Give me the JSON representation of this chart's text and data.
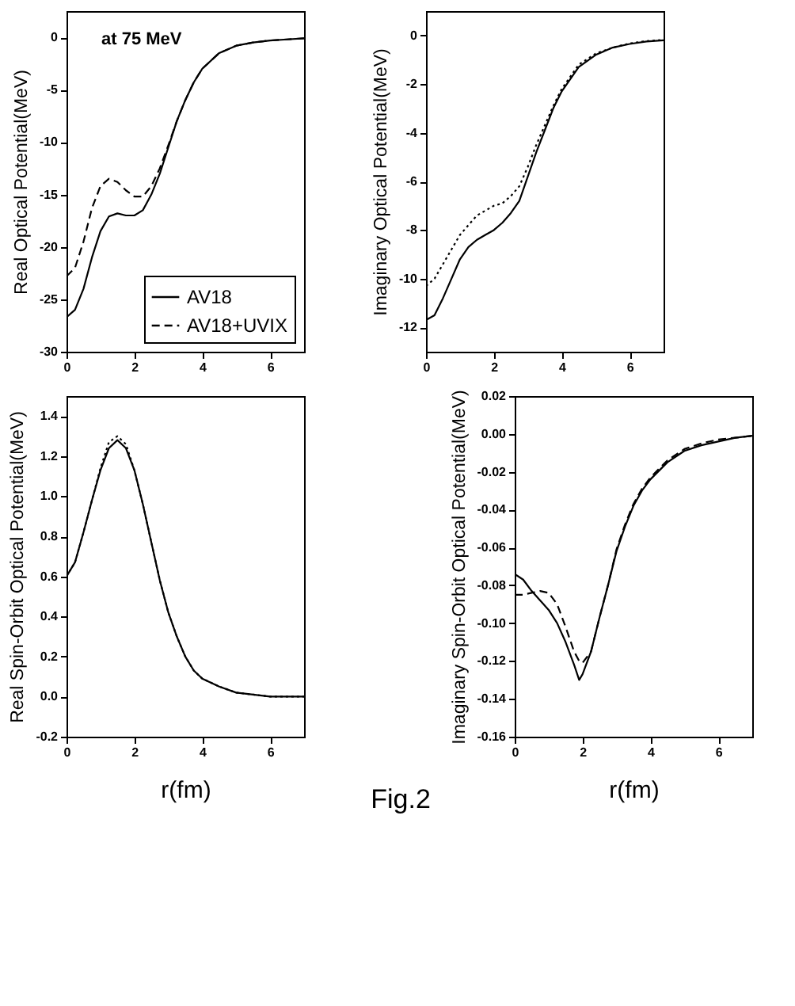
{
  "chart_data": [
    {
      "type": "line",
      "ylabel": "Real Optical Potential(MeV)",
      "annotations": [
        "at 75 MeV"
      ],
      "xlim": [
        0,
        7
      ],
      "xticks": [
        0,
        2,
        4,
        6
      ],
      "ylim": [
        -30,
        2.5
      ],
      "yticks": [
        -30,
        -25,
        -20,
        -15,
        -10,
        -5,
        0
      ],
      "legend": "bottom right",
      "grid": false,
      "x": [
        0,
        0.25,
        0.5,
        0.75,
        1.0,
        1.25,
        1.5,
        1.75,
        2.0,
        2.25,
        2.5,
        2.75,
        3.0,
        3.25,
        3.5,
        3.75,
        4.0,
        4.5,
        5.0,
        5.5,
        6.0,
        6.5,
        7.0
      ],
      "series": [
        {
          "name": "AV18",
          "color": "#000000",
          "line_style": "solid",
          "values": [
            -26.7,
            -26,
            -24,
            -21,
            -18.5,
            -17.1,
            -16.8,
            -17.0,
            -17.0,
            -16.5,
            -15,
            -13,
            -10.5,
            -8,
            -6,
            -4.3,
            -3,
            -1.5,
            -0.8,
            -0.5,
            -0.3,
            -0.2,
            -0.1
          ]
        },
        {
          "name": "AV18+UVIX",
          "color": "#000000",
          "line_style": "dashed",
          "values": [
            -22.8,
            -22,
            -19.5,
            -16.3,
            -14.2,
            -13.5,
            -13.8,
            -14.6,
            -15.2,
            -15.2,
            -14.2,
            -12.5,
            -10.3,
            -8,
            -6,
            -4.3,
            -3,
            -1.5,
            -0.8,
            -0.5,
            -0.3,
            -0.2,
            -0.1
          ]
        }
      ]
    },
    {
      "type": "line",
      "ylabel": "Imaginary Optical Potential(MeV)",
      "xlim": [
        0,
        7
      ],
      "xticks": [
        0,
        2,
        4,
        6
      ],
      "ylim": [
        -13,
        1
      ],
      "yticks": [
        -12,
        -10,
        -8,
        -6,
        -4,
        -2,
        0
      ],
      "grid": false,
      "x": [
        0,
        0.25,
        0.5,
        0.75,
        1.0,
        1.25,
        1.5,
        1.75,
        2.0,
        2.25,
        2.5,
        2.75,
        3.0,
        3.25,
        3.5,
        3.75,
        4.0,
        4.5,
        5.0,
        5.5,
        6.0,
        6.5,
        7.0
      ],
      "series": [
        {
          "color": "#000000",
          "line_style": "solid",
          "values": [
            -11.7,
            -11.5,
            -10.8,
            -10,
            -9.2,
            -8.7,
            -8.4,
            -8.2,
            -8.0,
            -7.7,
            -7.3,
            -6.8,
            -5.8,
            -4.8,
            -3.9,
            -3.0,
            -2.3,
            -1.3,
            -0.8,
            -0.5,
            -0.35,
            -0.25,
            -0.2
          ]
        },
        {
          "color": "#000000",
          "line_style": "dotted",
          "values": [
            -10.3,
            -10.0,
            -9.4,
            -8.8,
            -8.2,
            -7.8,
            -7.4,
            -7.2,
            -7.0,
            -6.9,
            -6.6,
            -6.2,
            -5.4,
            -4.5,
            -3.7,
            -2.9,
            -2.2,
            -1.2,
            -0.75,
            -0.5,
            -0.33,
            -0.23,
            -0.18
          ]
        }
      ]
    },
    {
      "type": "line",
      "xlabel": "r(fm)",
      "ylabel": "Real Spin-Orbit Optical Potential(MeV)",
      "xlim": [
        0,
        7
      ],
      "xticks": [
        0,
        2,
        4,
        6
      ],
      "ylim": [
        -0.2,
        1.5
      ],
      "yticks": [
        -0.2,
        {
          "value": 0,
          "label": "0.0"
        },
        0.2,
        0.4,
        0.6,
        0.8,
        {
          "value": 1,
          "label": "1.0"
        },
        1.2,
        1.4
      ],
      "grid": false,
      "x": [
        0,
        0.25,
        0.5,
        0.75,
        1.0,
        1.25,
        1.5,
        1.75,
        2.0,
        2.25,
        2.5,
        2.75,
        3.0,
        3.25,
        3.5,
        3.75,
        4.0,
        4.5,
        5.0,
        5.5,
        6.0,
        6.5,
        7.0
      ],
      "series": [
        {
          "color": "#000000",
          "line_style": "solid",
          "values": [
            0.6,
            0.67,
            0.82,
            0.98,
            1.13,
            1.24,
            1.28,
            1.24,
            1.13,
            0.96,
            0.77,
            0.58,
            0.42,
            0.3,
            0.2,
            0.13,
            0.09,
            0.05,
            0.02,
            0.01,
            0.0,
            0.0,
            0.0
          ]
        },
        {
          "color": "#000000",
          "line_style": "dotted",
          "values": [
            0.6,
            0.67,
            0.82,
            0.98,
            1.14,
            1.27,
            1.3,
            1.26,
            1.13,
            0.96,
            0.77,
            0.58,
            0.42,
            0.3,
            0.2,
            0.13,
            0.09,
            0.05,
            0.02,
            0.01,
            0.0,
            0.0,
            0.0
          ]
        }
      ]
    },
    {
      "type": "line",
      "xlabel": "r(fm)",
      "ylabel": "Imaginary Spin-Orbit Optical Potential(MeV)",
      "annotations": [
        "Fig.2"
      ],
      "xlim": [
        0,
        7
      ],
      "xticks": [
        0,
        2,
        4,
        6
      ],
      "ylim": [
        -0.16,
        0.02
      ],
      "yticks": [
        -0.16,
        -0.14,
        -0.12,
        {
          "value": -0.1,
          "label": "-0.10"
        },
        -0.08,
        -0.06,
        -0.04,
        -0.02,
        {
          "value": 0,
          "label": "0.00"
        },
        0.02
      ],
      "grid": false,
      "x": [
        0,
        0.25,
        0.5,
        0.75,
        1.0,
        1.25,
        1.5,
        1.75,
        1.9,
        2.0,
        2.25,
        2.5,
        2.75,
        3.0,
        3.25,
        3.5,
        3.75,
        4.0,
        4.5,
        5.0,
        5.5,
        6.0,
        6.5,
        7.0
      ],
      "series": [
        {
          "color": "#000000",
          "line_style": "solid",
          "values": [
            -0.074,
            -0.077,
            -0.083,
            -0.088,
            -0.093,
            -0.1,
            -0.11,
            -0.122,
            -0.13,
            -0.127,
            -0.115,
            -0.097,
            -0.08,
            -0.062,
            -0.049,
            -0.038,
            -0.03,
            -0.024,
            -0.015,
            -0.009,
            -0.006,
            -0.004,
            -0.002,
            -0.001
          ]
        },
        {
          "color": "#000000",
          "line_style": "dashed",
          "values": [
            -0.085,
            -0.085,
            -0.084,
            -0.083,
            -0.084,
            -0.09,
            -0.102,
            -0.115,
            -0.12,
            -0.121,
            -0.115,
            -0.097,
            -0.08,
            -0.061,
            -0.048,
            -0.037,
            -0.029,
            -0.023,
            -0.014,
            -0.008,
            -0.005,
            -0.003,
            -0.002,
            -0.001
          ]
        }
      ]
    }
  ]
}
